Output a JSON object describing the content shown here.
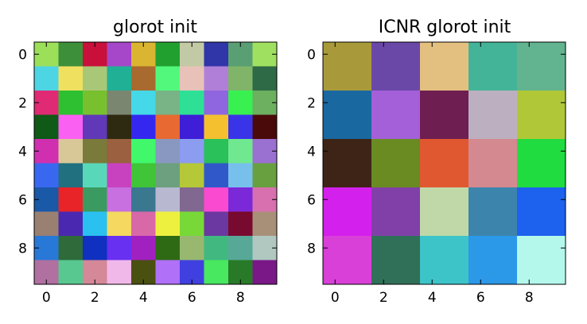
{
  "chart_data": [
    {
      "type": "heatmap",
      "title": "glorot init",
      "xlabel": "",
      "ylabel": "",
      "xlim": [
        -0.5,
        9.5
      ],
      "ylim": [
        9.5,
        -0.5
      ],
      "grid": false,
      "xticks": [
        0,
        2,
        4,
        6,
        8
      ],
      "yticks": [
        0,
        2,
        4,
        6,
        8
      ],
      "block": 1,
      "colors": [
        [
          "#9ce05a",
          "#3d8f3a",
          "#c8103a",
          "#a547c8",
          "#d9b531",
          "#22a02f",
          "#c2c9a5",
          "#3035a8",
          "#5a9e74",
          "#a0e060"
        ],
        [
          "#4ed5e3",
          "#f0e060",
          "#a8c878",
          "#20b096",
          "#a86a2e",
          "#52f87c",
          "#e8c2b8",
          "#b080d8",
          "#80b468",
          "#2e6a46"
        ],
        [
          "#e02a74",
          "#2ec030",
          "#78c02e",
          "#7a8670",
          "#44d8e8",
          "#78b486",
          "#2ee096",
          "#9066e0",
          "#38f050",
          "#6cb060"
        ],
        [
          "#0e5a16",
          "#fa60f2",
          "#6038b8",
          "#2e2a12",
          "#3428f0",
          "#e86a32",
          "#3e1ed6",
          "#f4c030",
          "#3a34e8",
          "#4a0a0a"
        ],
        [
          "#d030b0",
          "#d8c898",
          "#7a7a3a",
          "#9a6040",
          "#40f86a",
          "#8898c0",
          "#8c9cf0",
          "#2ac05a",
          "#70e890",
          "#9a70d0"
        ],
        [
          "#3868f0",
          "#207080",
          "#58d8b8",
          "#c842c0",
          "#40c438",
          "#6ca07e",
          "#b4c838",
          "#3058c8",
          "#78c0ec",
          "#68a040"
        ],
        [
          "#1a58a8",
          "#e82428",
          "#3a9a60",
          "#c870e0",
          "#3a7890",
          "#b8b8d0",
          "#806890",
          "#fa4ad0",
          "#7a28d8",
          "#d870b0"
        ],
        [
          "#9a8070",
          "#4a28b0",
          "#2ac0f0",
          "#f4d860",
          "#d868a8",
          "#eef040",
          "#78d838",
          "#6a38a0",
          "#780a30",
          "#a89078"
        ],
        [
          "#2878d8",
          "#2e6a3a",
          "#1030c0",
          "#6830f0",
          "#a020c0",
          "#2e6a14",
          "#98b870",
          "#40b880",
          "#58a898",
          "#b0c8c0"
        ],
        [
          "#b070a0",
          "#58c890",
          "#d48898",
          "#f0b8e8",
          "#4a5010",
          "#b070f8",
          "#4040e0",
          "#48e860",
          "#287a28",
          "#7a1888"
        ]
      ]
    },
    {
      "type": "heatmap",
      "title": "ICNR glorot init",
      "xlabel": "",
      "ylabel": "",
      "xlim": [
        -0.5,
        9.5
      ],
      "ylim": [
        9.5,
        -0.5
      ],
      "grid": false,
      "xticks": [
        0,
        2,
        4,
        6,
        8
      ],
      "yticks": [
        0,
        2,
        4,
        6,
        8
      ],
      "block": 2,
      "colors": [
        [
          "#a89a3a",
          "#6a48a8",
          "#e4c080",
          "#44b498",
          "#62b490"
        ],
        [
          "#1a68a0",
          "#a460d8",
          "#6e1e50",
          "#bcb0c0",
          "#b0c838"
        ],
        [
          "#3e2416",
          "#6a8a22",
          "#e05830",
          "#d48890",
          "#20dc40"
        ],
        [
          "#d420ec",
          "#8040a8",
          "#c0d8a8",
          "#3c84ac",
          "#1c62ee"
        ],
        [
          "#d840d8",
          "#307058",
          "#3cc4c8",
          "#2c98e8",
          "#b4f8ec"
        ]
      ]
    }
  ]
}
